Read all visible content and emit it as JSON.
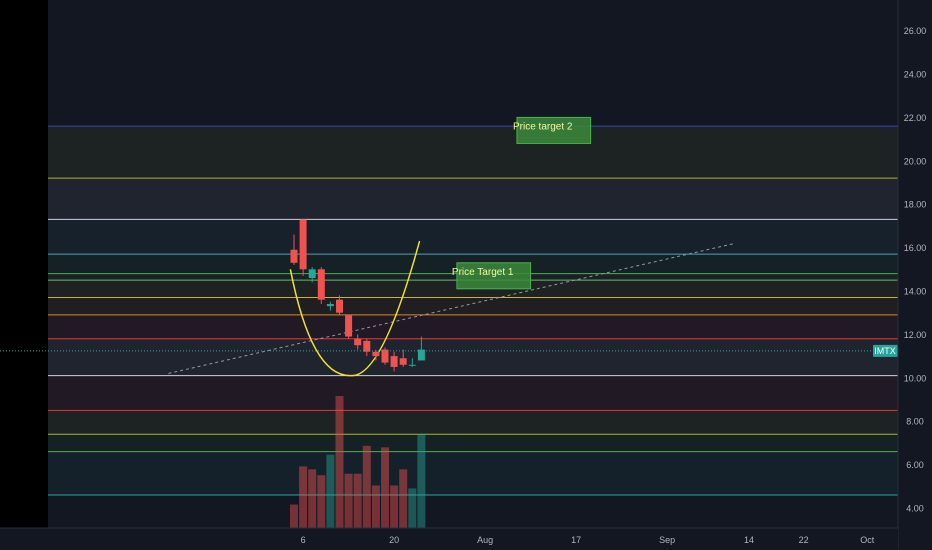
{
  "chart_data": {
    "type": "candlestick",
    "symbol": "IMTX",
    "last_price": 11.24,
    "background": "#131722",
    "y_axis": {
      "ticks": [
        "4.00",
        "6.00",
        "8.00",
        "10.00",
        "12.00",
        "14.00",
        "16.00",
        "18.00",
        "20.00",
        "22.00",
        "24.00",
        "26.00"
      ],
      "range": [
        3.0,
        27.1
      ]
    },
    "x_axis": {
      "ticks": [
        "6",
        "20",
        "Aug",
        "17",
        "Sep",
        "14",
        "22",
        "Oct"
      ]
    },
    "candles": [
      {
        "o": 15.9,
        "h": 16.6,
        "l": 15.2,
        "c": 15.3
      },
      {
        "o": 17.3,
        "h": 17.3,
        "l": 14.7,
        "c": 15.0
      },
      {
        "o": 14.6,
        "h": 15.1,
        "l": 14.4,
        "c": 15.0
      },
      {
        "o": 15.0,
        "h": 15.1,
        "l": 13.4,
        "c": 13.6
      },
      {
        "o": 13.3,
        "h": 13.5,
        "l": 13.1,
        "c": 13.4
      },
      {
        "o": 13.6,
        "h": 13.8,
        "l": 12.9,
        "c": 13.0
      },
      {
        "o": 12.9,
        "h": 12.9,
        "l": 11.8,
        "c": 11.9
      },
      {
        "o": 11.8,
        "h": 12.0,
        "l": 11.3,
        "c": 11.5
      },
      {
        "o": 11.7,
        "h": 11.8,
        "l": 11.0,
        "c": 11.2
      },
      {
        "o": 11.2,
        "h": 11.3,
        "l": 10.8,
        "c": 11.0
      },
      {
        "o": 11.3,
        "h": 11.4,
        "l": 10.6,
        "c": 10.7
      },
      {
        "o": 11.0,
        "h": 11.2,
        "l": 10.3,
        "c": 10.5
      },
      {
        "o": 10.9,
        "h": 11.3,
        "l": 10.5,
        "c": 10.6
      },
      {
        "o": 10.6,
        "h": 10.9,
        "l": 10.5,
        "c": 10.6
      },
      {
        "o": 10.8,
        "h": 11.9,
        "l": 10.8,
        "c": 11.3
      }
    ],
    "volume": [
      {
        "v": 0.16,
        "dir": "down"
      },
      {
        "v": 0.42,
        "dir": "down"
      },
      {
        "v": 0.4,
        "dir": "down"
      },
      {
        "v": 0.36,
        "dir": "down"
      },
      {
        "v": 0.5,
        "dir": "up"
      },
      {
        "v": 0.9,
        "dir": "down"
      },
      {
        "v": 0.37,
        "dir": "down"
      },
      {
        "v": 0.37,
        "dir": "down"
      },
      {
        "v": 0.56,
        "dir": "down"
      },
      {
        "v": 0.29,
        "dir": "down"
      },
      {
        "v": 0.55,
        "dir": "down"
      },
      {
        "v": 0.29,
        "dir": "down"
      },
      {
        "v": 0.4,
        "dir": "down"
      },
      {
        "v": 0.27,
        "dir": "up"
      },
      {
        "v": 0.64,
        "dir": "up"
      }
    ],
    "fib_levels": [
      {
        "price": 21.6,
        "color": "#3949ab"
      },
      {
        "price": 19.2,
        "color": "#a4b82e"
      },
      {
        "price": 17.3,
        "color": "#d1d4dc"
      },
      {
        "price": 15.7,
        "color": "#4fa3b8"
      },
      {
        "price": 14.8,
        "color": "#4caf50"
      },
      {
        "price": 14.5,
        "color": "#66bb6a"
      },
      {
        "price": 13.7,
        "color": "#c9b236"
      },
      {
        "price": 12.9,
        "color": "#e0862f"
      },
      {
        "price": 11.8,
        "color": "#e53935"
      },
      {
        "price": 10.1,
        "color": "#d1d4dc"
      },
      {
        "price": 8.5,
        "color": "#e53935"
      },
      {
        "price": 7.4,
        "color": "#a4b82e"
      },
      {
        "price": 6.6,
        "color": "#4caf50"
      },
      {
        "price": 4.6,
        "color": "#26a69a"
      }
    ],
    "annotations": [
      {
        "text": "Price target 2",
        "x0_slot": 24.5,
        "x1_slot": 32.6,
        "y_top": 22.0,
        "y_bottom": 20.8
      },
      {
        "text": "Price Target 1",
        "x0_slot": 17.9,
        "x1_slot": 26.0,
        "y_top": 15.3,
        "y_bottom": 14.1
      }
    ],
    "trendline": {
      "from": [
        -13.8,
        10.2
      ],
      "to": [
        48.5,
        16.2
      ]
    },
    "cup_curve": {
      "from": [
        -0.4,
        15.0
      ],
      "vertex": [
        6.3,
        10.1
      ],
      "to": [
        13.8,
        16.3
      ]
    },
    "colors": {
      "up": "#26a69a",
      "down": "#ef5350",
      "curve": "#f0e130",
      "text": "#b2b5be",
      "target_fill": "#3a8a3a",
      "target_text": "#f5f5a0"
    }
  }
}
